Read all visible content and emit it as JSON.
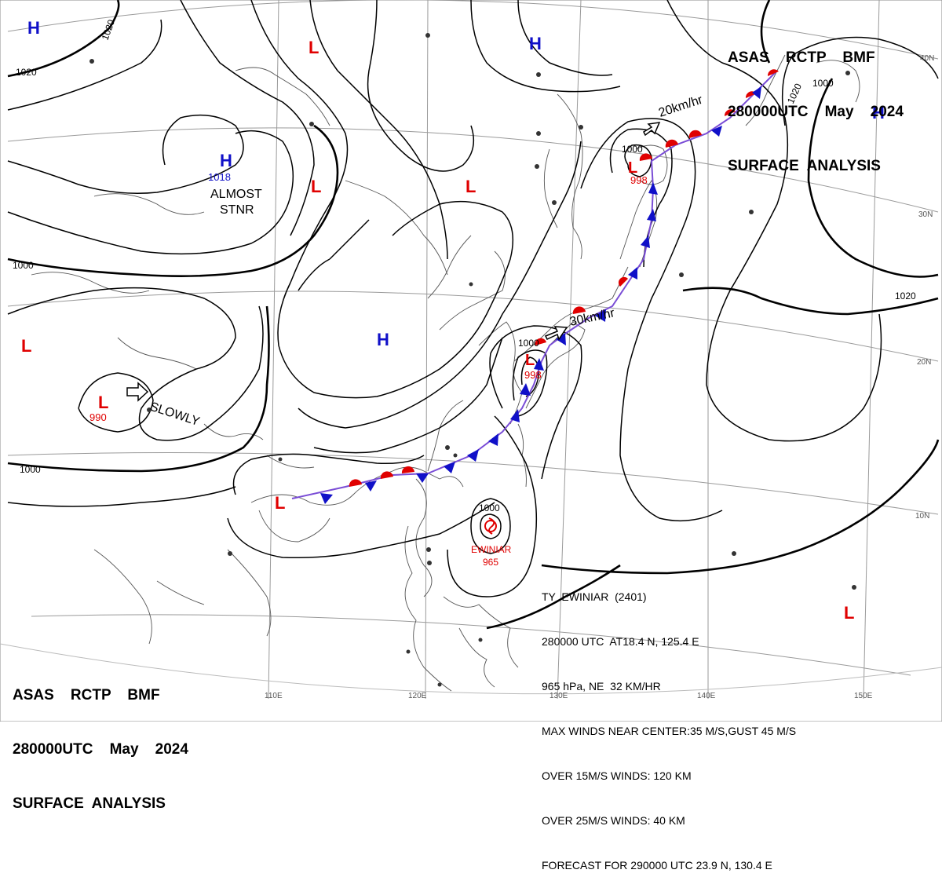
{
  "header": {
    "line1": "ASAS    RCTP    BMF",
    "line2": "280000UTC    May    2024",
    "line3": "SURFACE  ANALYSIS"
  },
  "typhoon": {
    "name": "EWINIAR",
    "pressure": "965",
    "lines": [
      "TY  EWINIAR  (2401)",
      "280000 UTC  AT18.4 N, 125.4 E",
      "965 hPa, NE  32 KM/HR",
      "MAX WINDS NEAR CENTER:35 M/S,GUST 45 M/S",
      "OVER 15M/S WINDS: 120 KM",
      "OVER 25M/S WINDS: 40 KM",
      "FORECAST FOR 290000 UTC 23.9 N, 130.4 E"
    ]
  },
  "pressure_centers": [
    {
      "id": "L-nw-china",
      "type": "L",
      "value": ""
    },
    {
      "id": "L-yellow-sea",
      "type": "L",
      "value": ""
    },
    {
      "id": "L-mongolia",
      "type": "L",
      "value": ""
    },
    {
      "id": "L-ne-china",
      "type": "L",
      "value": ""
    },
    {
      "id": "L-hokkaido",
      "type": "L",
      "value": "998"
    },
    {
      "id": "L-south-japan",
      "type": "L",
      "value": "998"
    },
    {
      "id": "L-west",
      "type": "L",
      "value": ""
    },
    {
      "id": "L-bay-bengal",
      "type": "L",
      "value": "990"
    },
    {
      "id": "L-scs",
      "type": "L",
      "value": ""
    },
    {
      "id": "L-se",
      "type": "L",
      "value": ""
    },
    {
      "id": "H-nw",
      "type": "H",
      "value": ""
    },
    {
      "id": "H-tibet",
      "type": "H",
      "value": "1018"
    },
    {
      "id": "H-siberia",
      "type": "H",
      "value": ""
    },
    {
      "id": "H-ne-pacific",
      "type": "H",
      "value": ""
    },
    {
      "id": "H-china",
      "type": "H",
      "value": ""
    }
  ],
  "isobar_labels": [
    "1020",
    "1020",
    "1000",
    "1000",
    "1000",
    "1000",
    "1000",
    "1000",
    "1020",
    "1020"
  ],
  "motion_labels": [
    "SLOWLY",
    "20km/hr",
    "30km/hr"
  ],
  "stnr_labels": [
    "ALMOST",
    "STNR"
  ],
  "lat_labels": [
    "40N",
    "30N",
    "20N",
    "10N"
  ],
  "lon_labels": [
    "110E",
    "120E",
    "130E",
    "140E",
    "150E"
  ],
  "colors": {
    "low": "#e00000",
    "high": "#1010c8",
    "warm_front": "#e00000",
    "cold_front": "#1010c8",
    "isobar": "#000000",
    "coast": "#555555",
    "grid": "#9a9a9a"
  }
}
